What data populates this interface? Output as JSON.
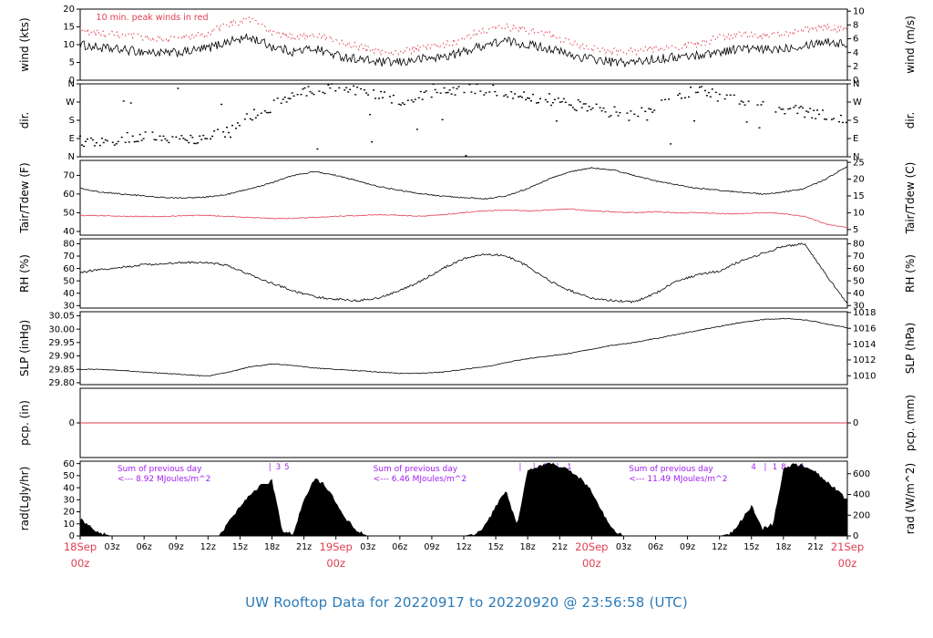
{
  "page": {
    "title": "UW Rooftop Data for 20220917  to  20220920 @ 23:56:58  (UTC)",
    "title_color": "#2b7bb9"
  },
  "colors": {
    "red": "#e03e50",
    "purple": "#a020f0",
    "black": "#000000",
    "date_red": "#e03e50"
  },
  "chart_data": {
    "type": "multi-panel-timeseries",
    "x": {
      "unit": "hours_utc",
      "range": [
        0,
        72
      ],
      "minor_step": 3,
      "minor_labels": [
        "03z",
        "06z",
        "09z",
        "12z",
        "15z",
        "18z",
        "21z"
      ],
      "day_labels": [
        "18Sep",
        "19Sep",
        "20Sep",
        "21Sep"
      ],
      "day_sub": "00z"
    },
    "panels": [
      {
        "id": "wind",
        "label_left": "wind (kts)",
        "label_right": "wind (m/s)",
        "ylim": [
          0,
          20
        ],
        "ticks_left": {
          "values": [
            0,
            5,
            10,
            15,
            20
          ],
          "labels": [
            "0",
            "5",
            "10",
            "15",
            "20"
          ]
        },
        "ticks_right": {
          "values": [
            0,
            3.89,
            7.78,
            11.66,
            15.55,
            19.44
          ],
          "labels": [
            "0",
            "2",
            "4",
            "6",
            "8",
            "10"
          ]
        },
        "note": {
          "text": "10 min. peak winds in red",
          "color": "red",
          "x_hour": 1.5
        },
        "series": [
          {
            "name": "wind-speed",
            "type": "line",
            "color": "black",
            "x_step": 2,
            "noise": 1.3,
            "y": [
              10,
              9,
              8.5,
              8,
              7.5,
              8,
              9,
              11,
              12,
              9.5,
              8,
              9,
              7,
              6,
              5,
              5,
              6,
              6.5,
              8,
              10,
              11,
              10,
              9,
              7,
              6,
              5,
              5,
              6,
              6.5,
              7,
              8,
              9,
              8.5,
              9,
              10,
              11,
              10
            ]
          },
          {
            "name": "wind-peak",
            "type": "line",
            "color": "red",
            "dash": true,
            "x_step": 2,
            "noise": 1.1,
            "y": [
              14,
              13,
              12.5,
              12,
              11.5,
              12,
              13,
              16,
              17,
              13.5,
              12,
              13,
              11,
              9.5,
              8,
              8,
              9,
              9.5,
              12,
              14,
              15,
              14,
              13,
              10.5,
              9,
              8,
              8,
              9,
              9.5,
              10,
              12,
              13,
              12.5,
              13,
              14,
              15,
              14
            ]
          }
        ]
      },
      {
        "id": "dir",
        "label_left": "dir.",
        "label_right": "dir.",
        "ylim": [
          0,
          360
        ],
        "ticks_left": {
          "values": [
            0,
            90,
            180,
            270,
            360
          ],
          "labels": [
            "N",
            "E",
            "S",
            "W",
            "N"
          ]
        },
        "ticks_right": {
          "values": [
            0,
            90,
            180,
            270,
            360
          ],
          "labels": [
            "N",
            "E",
            "S",
            "W",
            "N"
          ]
        },
        "series": [
          {
            "name": "wind-direction",
            "type": "scatter",
            "color": "black",
            "x_step": 2,
            "jitter": 28,
            "outlier_frac": 0.07,
            "y": [
              80,
              70,
              90,
              100,
              90,
              80,
              110,
              120,
              200,
              250,
              300,
              330,
              340,
              330,
              300,
              280,
              300,
              320,
              340,
              330,
              320,
              300,
              280,
              260,
              240,
              220,
              200,
              250,
              300,
              330,
              300,
              280,
              260,
              240,
              220,
              200,
              180
            ]
          }
        ]
      },
      {
        "id": "temp",
        "label_left": "Tair/Tdew (F)",
        "label_right": "Tair/Tdew (C)",
        "ylim": [
          38,
          78
        ],
        "ticks_left": {
          "values": [
            40,
            50,
            60,
            70
          ],
          "labels": [
            "40",
            "50",
            "60",
            "70"
          ]
        },
        "ticks_right": {
          "values": [
            41,
            50,
            59,
            68,
            77
          ],
          "labels": [
            "5",
            "10",
            "15",
            "20",
            "25"
          ]
        },
        "series": [
          {
            "name": "tair",
            "type": "line",
            "color": "black",
            "x_step": 2,
            "noise": 0.35,
            "y": [
              63,
              61,
              60,
              59,
              58,
              58,
              58.5,
              60,
              63,
              66,
              70,
              72,
              70,
              67,
              64,
              62,
              60,
              59,
              58,
              57.5,
              59,
              63,
              68,
              72,
              74,
              73,
              70,
              67,
              65,
              63,
              62,
              61,
              60,
              61,
              63,
              68,
              75
            ]
          },
          {
            "name": "tdew",
            "type": "line",
            "color": "red",
            "x_step": 2,
            "noise": 0.25,
            "y": [
              48.5,
              48.5,
              48,
              48,
              48,
              48.5,
              48.5,
              48,
              47.5,
              47,
              47,
              47.5,
              48,
              48.5,
              49,
              48.5,
              48,
              49,
              50,
              51,
              51.5,
              51,
              51.5,
              52,
              51,
              50.5,
              50,
              50.5,
              50,
              50,
              49.5,
              49.5,
              50,
              49.5,
              48,
              44,
              42
            ]
          }
        ]
      },
      {
        "id": "rh",
        "label_left": "RH (%)",
        "label_right": "RH (%)",
        "ylim": [
          28,
          84
        ],
        "ticks_left": {
          "values": [
            30,
            40,
            50,
            60,
            70,
            80
          ],
          "labels": [
            "30",
            "40",
            "50",
            "60",
            "70",
            "80"
          ]
        },
        "ticks_right": {
          "values": [
            30,
            40,
            50,
            60,
            70,
            80
          ],
          "labels": [
            "30",
            "40",
            "50",
            "60",
            "70",
            "80"
          ]
        },
        "series": [
          {
            "name": "relative-humidity",
            "type": "line",
            "color": "black",
            "x_step": 2,
            "noise": 0.9,
            "y": [
              57,
              59,
              61,
              63,
              64,
              65,
              65,
              62,
              55,
              48,
              42,
              37,
              35,
              34,
              36,
              42,
              50,
              60,
              68,
              72,
              70,
              62,
              50,
              42,
              36,
              34,
              33,
              40,
              50,
              55,
              58,
              66,
              72,
              78,
              80,
              55,
              31
            ]
          }
        ]
      },
      {
        "id": "slp",
        "label_left": "SLP (inHg)",
        "label_right": "SLP (hPa)",
        "ylim": [
          29.793,
          30.065
        ],
        "ticks_left": {
          "values": [
            29.8,
            29.85,
            29.9,
            29.95,
            30.0,
            30.05
          ],
          "labels": [
            "29.80",
            "29.85",
            "29.90",
            "29.95",
            "30.00",
            "30.05"
          ]
        },
        "ticks_right": {
          "values": [
            29.826,
            29.885,
            29.944,
            30.003,
            30.062
          ],
          "labels": [
            "1010",
            "1012",
            "1014",
            "1016",
            "1018"
          ]
        },
        "series": [
          {
            "name": "sea-level-pressure",
            "type": "line",
            "color": "black",
            "x_step": 2,
            "noise": 0.0015,
            "y": [
              29.85,
              29.85,
              29.845,
              29.84,
              29.835,
              29.83,
              29.825,
              29.84,
              29.86,
              29.87,
              29.865,
              29.855,
              29.85,
              29.845,
              29.84,
              29.835,
              29.835,
              29.84,
              29.85,
              29.86,
              29.875,
              29.89,
              29.9,
              29.91,
              29.925,
              29.94,
              29.95,
              29.965,
              29.98,
              29.995,
              30.01,
              30.025,
              30.035,
              30.04,
              30.035,
              30.02,
              30.005
            ]
          }
        ]
      },
      {
        "id": "pcp",
        "label_left": "pcp. (in)",
        "label_right": "pcp. (mm)",
        "ylim": [
          -1,
          1
        ],
        "ticks_left": {
          "values": [
            0
          ],
          "labels": [
            "0"
          ]
        },
        "ticks_right": {
          "values": [
            0
          ],
          "labels": [
            "0"
          ]
        },
        "series": [
          {
            "name": "precipitation",
            "type": "hline",
            "color": "red",
            "value": 0
          }
        ]
      },
      {
        "id": "rad",
        "label_left": "rad(Lgly/hr)",
        "label_right": "rad (W/m^2)",
        "ylim": [
          0,
          62
        ],
        "ticks_left": {
          "values": [
            0,
            10,
            20,
            30,
            40,
            50,
            60
          ],
          "labels": [
            "0",
            "10",
            "20",
            "30",
            "40",
            "50",
            "60"
          ]
        },
        "ticks_right": {
          "values": [
            0,
            17.2,
            34.4,
            51.6
          ],
          "labels": [
            "0",
            "200",
            "400",
            "600"
          ]
        },
        "sums": [
          {
            "x_hour": 3.5,
            "line1": "Sum of previous day",
            "line2": "<--- 8.92 MJoules/m^2"
          },
          {
            "x_hour": 27.5,
            "line1": "Sum of previous day",
            "line2": "<--- 6.46 MJoules/m^2"
          },
          {
            "x_hour": 51.5,
            "line1": "Sum of previous day",
            "line2": "<--- 11.49 MJoules/m^2"
          }
        ],
        "marks": [
          {
            "h": 17.8,
            "t": "|"
          },
          {
            "h": 18.6,
            "t": "3"
          },
          {
            "h": 19.4,
            "t": "5"
          },
          {
            "h": 41.3,
            "t": "|"
          },
          {
            "h": 42.6,
            "t": "|"
          },
          {
            "h": 43.6,
            "t": "8"
          },
          {
            "h": 44.8,
            "t": "|"
          },
          {
            "h": 45.9,
            "t": "1"
          },
          {
            "h": 63.2,
            "t": "4"
          },
          {
            "h": 64.3,
            "t": "|"
          },
          {
            "h": 65.2,
            "t": "1"
          },
          {
            "h": 66.0,
            "t": "8"
          },
          {
            "h": 66.9,
            "t": "|"
          },
          {
            "h": 67.8,
            "t": "1"
          }
        ],
        "series": [
          {
            "name": "solar-radiation",
            "type": "area",
            "color": "black",
            "x_step": 1,
            "y": [
              14,
              7,
              2,
              0,
              0,
              0,
              0,
              0,
              0,
              0,
              0,
              0,
              0,
              0,
              12,
              25,
              35,
              42,
              46,
              4,
              2,
              30,
              48,
              42,
              28,
              14,
              4,
              0,
              0,
              0,
              0,
              0,
              0,
              0,
              0,
              0,
              0,
              2,
              8,
              25,
              38,
              8,
              55,
              58,
              60,
              58,
              54,
              47,
              37,
              20,
              5,
              0,
              0,
              0,
              0,
              0,
              0,
              0,
              0,
              0,
              0,
              2,
              12,
              25,
              6,
              10,
              55,
              60,
              58,
              53,
              46,
              38,
              30
            ]
          }
        ]
      }
    ]
  }
}
